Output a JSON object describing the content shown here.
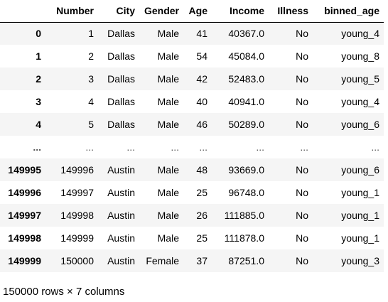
{
  "dataframe": {
    "columns": [
      "",
      "Number",
      "City",
      "Gender",
      "Age",
      "Income",
      "Illness",
      "binned_age"
    ],
    "rows": [
      {
        "index": "0",
        "cells": [
          "1",
          "Dallas",
          "Male",
          "41",
          "40367.0",
          "No",
          "young_4"
        ]
      },
      {
        "index": "1",
        "cells": [
          "2",
          "Dallas",
          "Male",
          "54",
          "45084.0",
          "No",
          "young_8"
        ]
      },
      {
        "index": "2",
        "cells": [
          "3",
          "Dallas",
          "Male",
          "42",
          "52483.0",
          "No",
          "young_5"
        ]
      },
      {
        "index": "3",
        "cells": [
          "4",
          "Dallas",
          "Male",
          "40",
          "40941.0",
          "No",
          "young_4"
        ]
      },
      {
        "index": "4",
        "cells": [
          "5",
          "Dallas",
          "Male",
          "46",
          "50289.0",
          "No",
          "young_6"
        ]
      },
      {
        "index": "...",
        "cells": [
          "...",
          "...",
          "...",
          "...",
          "...",
          "...",
          "..."
        ],
        "ellipsis": true
      },
      {
        "index": "149995",
        "cells": [
          "149996",
          "Austin",
          "Male",
          "48",
          "93669.0",
          "No",
          "young_6"
        ]
      },
      {
        "index": "149996",
        "cells": [
          "149997",
          "Austin",
          "Male",
          "25",
          "96748.0",
          "No",
          "young_1"
        ]
      },
      {
        "index": "149997",
        "cells": [
          "149998",
          "Austin",
          "Male",
          "26",
          "111885.0",
          "No",
          "young_1"
        ]
      },
      {
        "index": "149998",
        "cells": [
          "149999",
          "Austin",
          "Male",
          "25",
          "111878.0",
          "No",
          "young_1"
        ]
      },
      {
        "index": "149999",
        "cells": [
          "150000",
          "Austin",
          "Female",
          "37",
          "87251.0",
          "No",
          "young_3"
        ]
      }
    ]
  },
  "shape_text": "150000 rows × 7 columns"
}
